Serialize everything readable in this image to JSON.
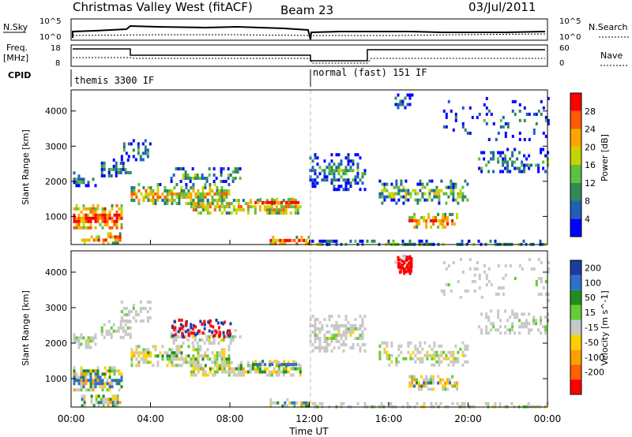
{
  "header": {
    "station": "Christmas Valley West (fitACF)",
    "beam": "Beam 23",
    "date": "03/Jul/2011"
  },
  "status_panels": {
    "nsky_label": "N.Sky",
    "nsky_scale_top": "10^5",
    "nsky_scale_bottom": "10^0",
    "nsearch_label": "N.Search",
    "nsearch_scale_top": "10^5",
    "nsearch_scale_bottom": "10^0",
    "freq_label": "Freq.",
    "freq_unit": "[MHz]",
    "freq_scale_top": "18",
    "freq_scale_bottom": "8",
    "nave_label": "Nave",
    "nave_scale_top": "60",
    "nave_scale_bottom": "0",
    "cpid_label": "CPID",
    "cpid_1": "themis 3300 IF",
    "cpid_2": "normal (fast) 151 IF"
  },
  "chart_data": [
    {
      "type": "heatmap",
      "name": "power",
      "ylabel": "Slant Range [km]",
      "yticks": [
        "1000",
        "2000",
        "3000",
        "4000"
      ],
      "ylim": [
        200,
        4600
      ],
      "colorbar_label": "Power [dB]",
      "colorbar_ticks": [
        "4",
        "8",
        "12",
        "16",
        "20",
        "24",
        "28"
      ],
      "colorbar_colors": [
        "#0000ff",
        "#1f5fb8",
        "#2e8b57",
        "#5fbf3f",
        "#c8d400",
        "#ffa500",
        "#ff5a00",
        "#ff0000"
      ]
    },
    {
      "type": "heatmap",
      "name": "velocity",
      "ylabel": "Slant Range [km]",
      "yticks": [
        "1000",
        "2000",
        "3000",
        "4000"
      ],
      "ylim": [
        200,
        4600
      ],
      "colorbar_label": "Velocity [m s^-1]",
      "colorbar_ticks": [
        "200",
        "100",
        "50",
        "15",
        "-15",
        "-50",
        "-100",
        "-200"
      ],
      "colorbar_colors": [
        "#1e3ca0",
        "#2e6ecf",
        "#228b22",
        "#66cc33",
        "#c8c8c8",
        "#ffd000",
        "#ffa000",
        "#ff6000",
        "#ff0000"
      ]
    }
  ],
  "time_axis": {
    "ticks": [
      "00:00",
      "04:00",
      "08:00",
      "12:00",
      "16:00",
      "20:00",
      "00:00"
    ],
    "label": "Time UT"
  }
}
